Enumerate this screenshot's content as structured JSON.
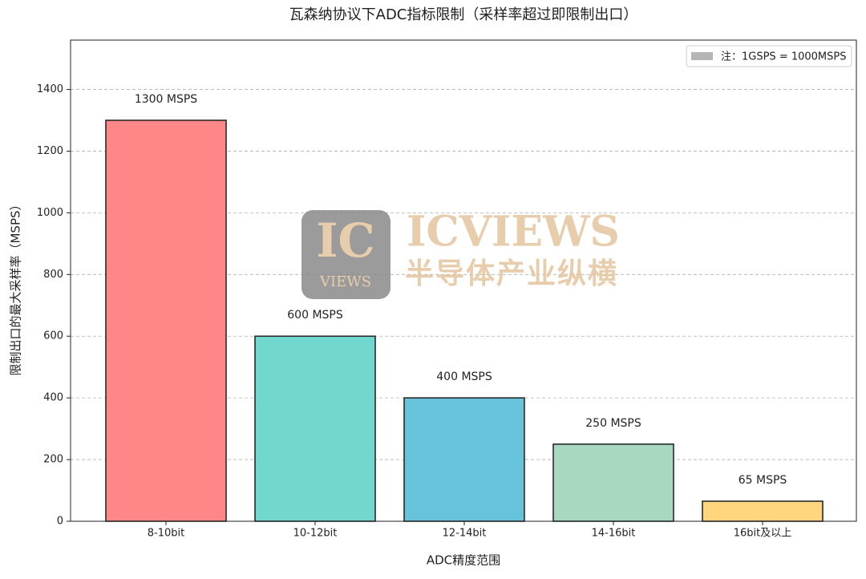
{
  "chart_data": {
    "type": "bar",
    "title": "瓦森纳协议下ADC指标限制（采样率超过即限制出口）",
    "x_label": "ADC精度范围",
    "y_label": "限制出口的最大采样率（MSPS）",
    "categories": [
      "8-10bit",
      "10-12bit",
      "12-14bit",
      "14-16bit",
      "16bit及以上"
    ],
    "values": [
      1300,
      600,
      400,
      250,
      65
    ],
    "value_labels": [
      "1300 MSPS",
      "600 MSPS",
      "400 MSPS",
      "250 MSPS",
      "65 MSPS"
    ],
    "colors": [
      "#ff8787",
      "#72d7cf",
      "#66c3d9",
      "#a9d8c1",
      "#ffd57e"
    ],
    "ylim": [
      0,
      1560
    ],
    "yticks": [
      0,
      200,
      400,
      600,
      800,
      1000,
      1200,
      1400
    ],
    "grid": true,
    "legend": {
      "label": "注：1GSPS = 1000MSPS",
      "color": "#b5b5b5",
      "position": "upper right"
    },
    "watermark": {
      "mark": "IC",
      "mark_sub": "VIEWS",
      "name": "ICVIEWS",
      "tagline": "半导体产业纵横"
    }
  }
}
